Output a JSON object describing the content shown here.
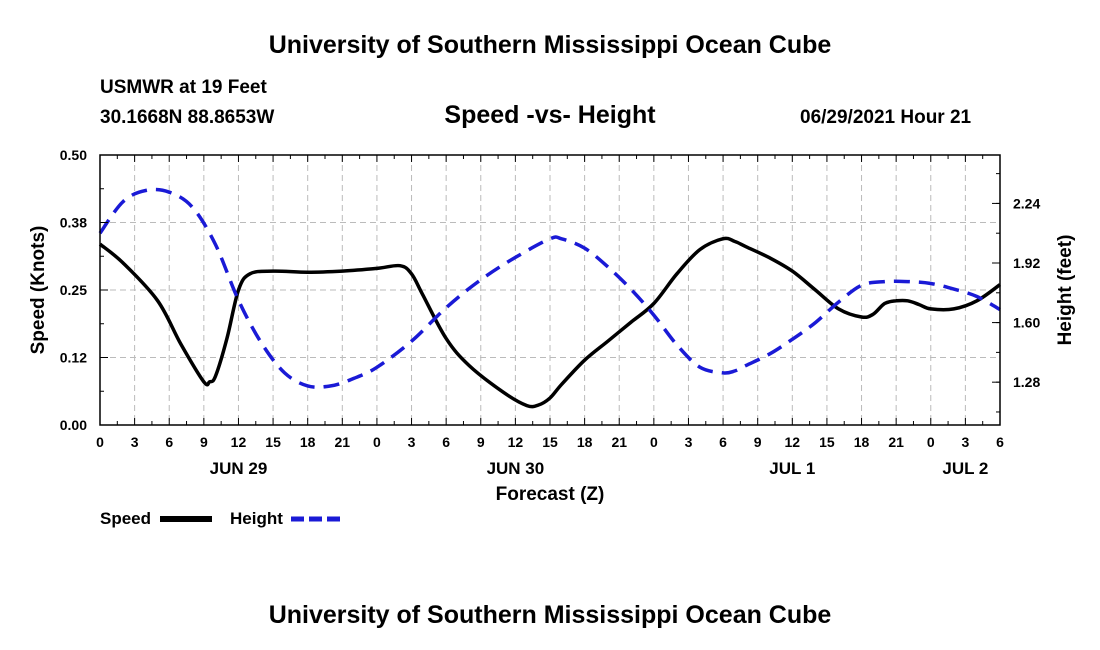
{
  "header": {
    "title": "University of Southern Mississippi Ocean Cube",
    "station": "USMWR at 19 Feet",
    "coords": "30.1668N  88.8653W",
    "subtitle": "Speed -vs- Height",
    "datetime": "06/29/2021 Hour 21"
  },
  "footer": {
    "title": "University of Southern Mississippi Ocean Cube"
  },
  "legend": {
    "speed_label": "Speed",
    "height_label": "Height"
  },
  "colors": {
    "speed": "#000000",
    "height": "#1a1ad6",
    "grid": "#bbbbbb"
  },
  "chart_data": {
    "type": "line",
    "title": "Speed -vs- Height",
    "xlabel": "Forecast (Z)",
    "ylabel": "Speed (Knots)",
    "y2label": "Height (feet)",
    "x_unit": "hours since Jun 29 00Z",
    "xlim": [
      0,
      78
    ],
    "ylim": [
      0,
      0.5
    ],
    "y2lim": [
      1.05,
      2.5
    ],
    "x_ticks": [
      0,
      3,
      6,
      9,
      12,
      15,
      18,
      21,
      24,
      27,
      30,
      33,
      36,
      39,
      42,
      45,
      48,
      51,
      54,
      57,
      60,
      63,
      66,
      69,
      72,
      75,
      78
    ],
    "x_tick_labels": [
      "0",
      "3",
      "6",
      "9",
      "12",
      "15",
      "18",
      "21",
      "0",
      "3",
      "6",
      "9",
      "12",
      "15",
      "18",
      "21",
      "0",
      "3",
      "6",
      "9",
      "12",
      "15",
      "18",
      "21",
      "0",
      "3",
      "6"
    ],
    "day_labels": [
      {
        "x": 12,
        "label": "JUN 29"
      },
      {
        "x": 36,
        "label": "JUN 30"
      },
      {
        "x": 60,
        "label": "JUL 1"
      },
      {
        "x": 75,
        "label": "JUL 2"
      }
    ],
    "y_ticks": [
      0.0,
      0.125,
      0.25,
      0.375,
      0.5
    ],
    "y_tick_labels": [
      "0.00",
      "0.12",
      "0.25",
      "0.38",
      "0.50"
    ],
    "y2_ticks": [
      1.28,
      1.6,
      1.92,
      2.24
    ],
    "y2_tick_labels": [
      "1.28",
      "1.60",
      "1.92",
      "2.24"
    ],
    "series": [
      {
        "name": "Speed",
        "axis": "left",
        "style": "solid",
        "x": [
          0,
          2,
          5,
          7,
          9,
          9.5,
          10,
          11,
          12,
          13,
          15,
          18,
          21,
          24,
          26,
          27,
          28,
          30,
          32,
          35,
          37,
          38,
          39,
          40,
          42,
          44,
          46,
          48,
          50,
          52,
          54,
          55,
          56,
          58,
          60,
          62,
          64,
          66,
          67,
          68,
          69,
          70,
          71,
          72,
          74,
          76,
          78
        ],
        "values": [
          0.335,
          0.3,
          0.23,
          0.15,
          0.08,
          0.08,
          0.09,
          0.16,
          0.25,
          0.28,
          0.285,
          0.283,
          0.285,
          0.29,
          0.295,
          0.28,
          0.24,
          0.16,
          0.11,
          0.06,
          0.036,
          0.037,
          0.05,
          0.075,
          0.12,
          0.155,
          0.19,
          0.225,
          0.28,
          0.325,
          0.345,
          0.34,
          0.33,
          0.31,
          0.285,
          0.25,
          0.215,
          0.2,
          0.205,
          0.225,
          0.23,
          0.23,
          0.223,
          0.215,
          0.215,
          0.23,
          0.26
        ]
      },
      {
        "name": "Height",
        "axis": "right",
        "style": "dashed",
        "x": [
          0,
          2,
          4,
          6,
          8,
          10,
          12,
          14,
          16,
          18,
          20,
          22,
          24,
          27,
          30,
          33,
          36,
          39,
          40,
          42,
          44,
          46,
          48,
          50,
          52,
          54,
          55,
          56,
          58,
          60,
          62,
          64,
          66,
          68,
          70,
          72,
          74,
          76,
          78
        ],
        "values": [
          2.08,
          2.25,
          2.31,
          2.3,
          2.22,
          2.02,
          1.72,
          1.49,
          1.33,
          1.26,
          1.26,
          1.3,
          1.36,
          1.5,
          1.68,
          1.83,
          1.95,
          2.05,
          2.05,
          2.0,
          1.9,
          1.78,
          1.64,
          1.48,
          1.36,
          1.33,
          1.34,
          1.37,
          1.43,
          1.51,
          1.6,
          1.71,
          1.8,
          1.82,
          1.82,
          1.81,
          1.78,
          1.74,
          1.67
        ]
      }
    ]
  }
}
